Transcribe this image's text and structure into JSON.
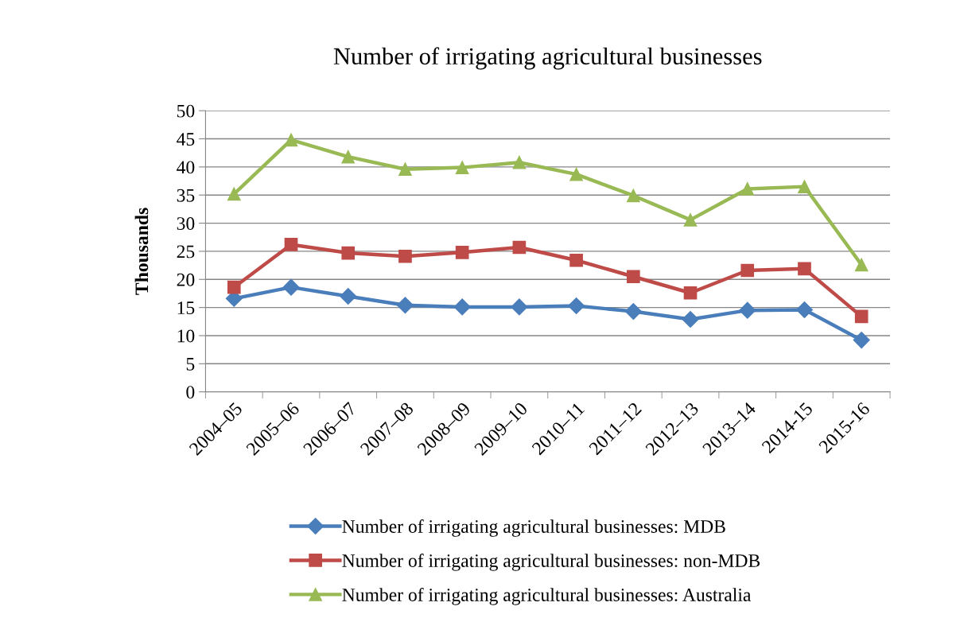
{
  "chart_data": {
    "type": "line",
    "title": "Number of irrigating agricultural businesses",
    "ylabel": "Thousands",
    "categories": [
      "2004–05",
      "2005–06",
      "2006–07",
      "2007–08",
      "2008–09",
      "2009–10",
      "2010–11",
      "2011–12",
      "2012–13",
      "2013–14",
      "2014-15",
      "2015-16"
    ],
    "series": [
      {
        "name": "Number of irrigating agricultural businesses: MDB",
        "color": "#4a7ebb",
        "marker": "diamond",
        "values": [
          16.6,
          18.6,
          17.0,
          15.4,
          15.1,
          15.1,
          15.3,
          14.3,
          12.9,
          14.5,
          14.6,
          9.2
        ]
      },
      {
        "name": "Number of irrigating agricultural businesses: non-MDB",
        "color": "#be4b48",
        "marker": "square",
        "values": [
          18.6,
          26.2,
          24.7,
          24.1,
          24.8,
          25.7,
          23.4,
          20.5,
          17.6,
          21.6,
          21.9,
          13.4
        ]
      },
      {
        "name": "Number of irrigating agricultural businesses: Australia",
        "color": "#98b954",
        "marker": "triangle",
        "values": [
          35.2,
          44.8,
          41.8,
          39.6,
          39.9,
          40.8,
          38.7,
          34.9,
          30.6,
          36.1,
          36.5,
          22.6
        ]
      }
    ],
    "ylim": [
      0,
      50
    ],
    "yticks": [
      0,
      5,
      10,
      15,
      20,
      25,
      30,
      35,
      40,
      45,
      50
    ],
    "grid": "y",
    "legend": "bottom",
    "line_style": "solid"
  }
}
